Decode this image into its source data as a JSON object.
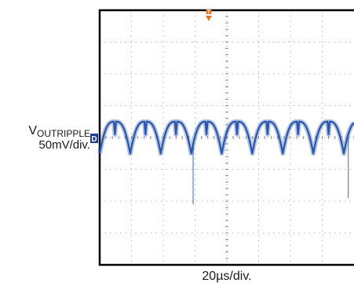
{
  "chart_data": {
    "type": "line",
    "title": "",
    "ylabel": {
      "main": "V",
      "sub": "OUTRIPPLE",
      "scale": "50mV/div."
    },
    "xlabel": "20µs/div.",
    "divisions": {
      "x": 8,
      "y": 8
    },
    "grid": true,
    "trigger_marker": "T",
    "channel_marker": "D",
    "xlim": [
      0,
      160
    ],
    "ylim": [
      -200,
      200
    ],
    "units": {
      "x": "µs",
      "y": "mV"
    },
    "ripple": {
      "period_us": 19.2,
      "phase_us": 9.6,
      "mean_mV": 0,
      "peak_mV": 25,
      "trough_mV": -25,
      "notch_mV": -45
    },
    "spikes": [
      {
        "t_us": 58.8,
        "min_mV": -105
      },
      {
        "t_us": 156.4,
        "min_mV": -95
      }
    ],
    "colors": {
      "trace": "#2a55a8",
      "grid": "#b8b8b8",
      "frame": "#000000",
      "marker": "#e07a2a",
      "channel_marker": "#1f3d91"
    }
  }
}
